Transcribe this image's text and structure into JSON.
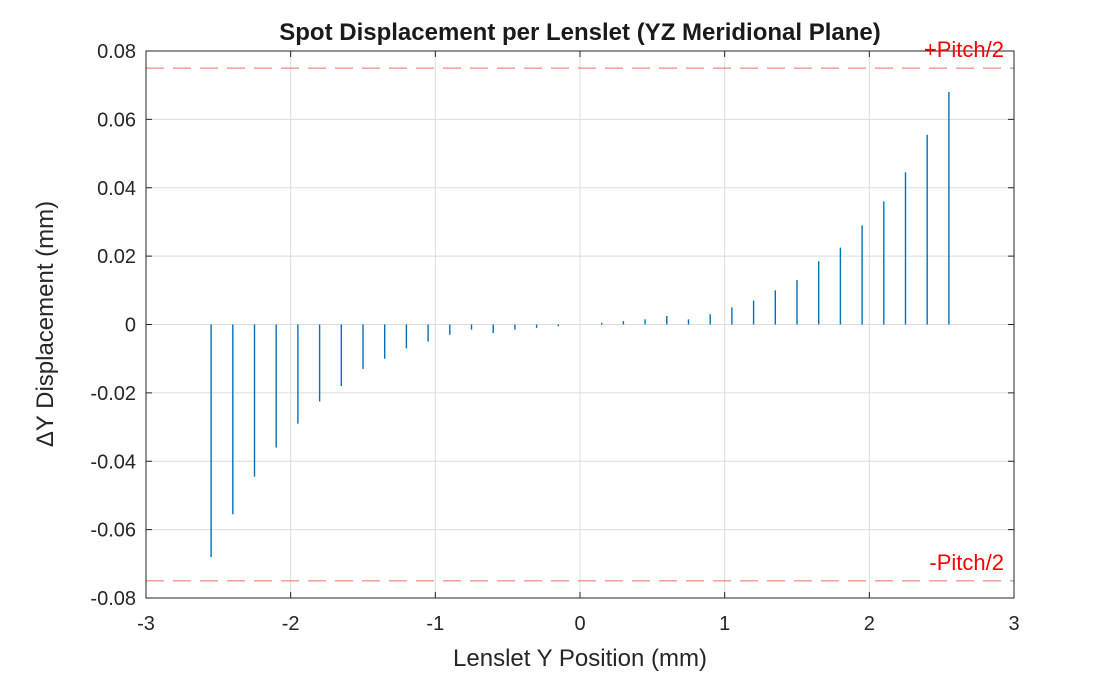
{
  "chart_data": {
    "type": "scatter",
    "title": "Spot Displacement per Lenslet (YZ Meridional Plane)",
    "xlabel": "Lenslet Y Position (mm)",
    "ylabel": "ΔY Displacement (mm)",
    "xlim": [
      -3,
      3
    ],
    "ylim": [
      -0.08,
      0.08
    ],
    "x_ticks": [
      "-3",
      "-2",
      "-1",
      "0",
      "1",
      "2",
      "3"
    ],
    "y_ticks": [
      "-0.08",
      "-0.06",
      "-0.04",
      "-0.02",
      "0",
      "0.02",
      "0.04",
      "0.06",
      "0.08"
    ],
    "grid": true,
    "series": [
      {
        "color": "#0072BD",
        "points": [
          {
            "x": -2.55,
            "y_min": -0.068,
            "y_max": 0
          },
          {
            "x": -2.4,
            "y_min": -0.0555,
            "y_max": 0
          },
          {
            "x": -2.25,
            "y_min": -0.0445,
            "y_max": 0
          },
          {
            "x": -2.1,
            "y_min": -0.036,
            "y_max": 0
          },
          {
            "x": -1.95,
            "y_min": -0.029,
            "y_max": 0
          },
          {
            "x": -1.8,
            "y_min": -0.0225,
            "y_max": 0
          },
          {
            "x": -1.65,
            "y_min": -0.018,
            "y_max": 0
          },
          {
            "x": -1.5,
            "y_min": -0.013,
            "y_max": 0
          },
          {
            "x": -1.35,
            "y_min": -0.01,
            "y_max": 0
          },
          {
            "x": -1.2,
            "y_min": -0.007,
            "y_max": 0
          },
          {
            "x": -1.05,
            "y_min": -0.005,
            "y_max": 0
          },
          {
            "x": -0.9,
            "y_min": -0.003,
            "y_max": 0
          },
          {
            "x": -0.75,
            "y_min": -0.0015,
            "y_max": 0
          },
          {
            "x": -0.6,
            "y_min": -0.0025,
            "y_max": 0
          },
          {
            "x": -0.45,
            "y_min": -0.0015,
            "y_max": 0
          },
          {
            "x": -0.3,
            "y_min": -0.001,
            "y_max": 0
          },
          {
            "x": -0.15,
            "y_min": -0.0005,
            "y_max": 0
          },
          {
            "x": 0.15,
            "y_min": 0,
            "y_max": 0.0005
          },
          {
            "x": 0.3,
            "y_min": 0,
            "y_max": 0.001
          },
          {
            "x": 0.45,
            "y_min": 0,
            "y_max": 0.0015
          },
          {
            "x": 0.6,
            "y_min": 0,
            "y_max": 0.0025
          },
          {
            "x": 0.75,
            "y_min": 0,
            "y_max": 0.0015
          },
          {
            "x": 0.9,
            "y_min": 0,
            "y_max": 0.003
          },
          {
            "x": 1.05,
            "y_min": 0,
            "y_max": 0.005
          },
          {
            "x": 1.2,
            "y_min": 0,
            "y_max": 0.007
          },
          {
            "x": 1.35,
            "y_min": 0,
            "y_max": 0.01
          },
          {
            "x": 1.5,
            "y_min": 0,
            "y_max": 0.013
          },
          {
            "x": 1.65,
            "y_min": 0,
            "y_max": 0.0185
          },
          {
            "x": 1.8,
            "y_min": 0,
            "y_max": 0.0225
          },
          {
            "x": 1.95,
            "y_min": 0,
            "y_max": 0.029
          },
          {
            "x": 2.1,
            "y_min": 0,
            "y_max": 0.036
          },
          {
            "x": 2.25,
            "y_min": 0,
            "y_max": 0.0445
          },
          {
            "x": 2.4,
            "y_min": 0,
            "y_max": 0.0555
          },
          {
            "x": 2.55,
            "y_min": 0,
            "y_max": 0.068
          }
        ]
      }
    ],
    "reference_lines": [
      {
        "label": "+Pitch/2",
        "y": 0.075,
        "color": "#ff0000"
      },
      {
        "label": "-Pitch/2",
        "y": -0.075,
        "color": "#ff0000"
      }
    ]
  }
}
